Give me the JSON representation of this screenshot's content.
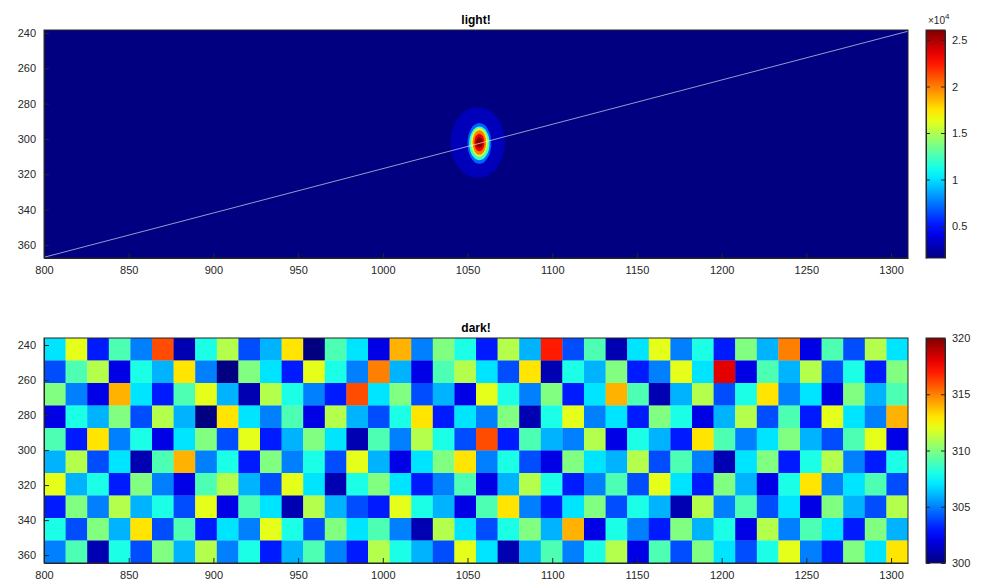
{
  "chart_data": [
    {
      "type": "heatmap",
      "title": "light!",
      "xlim": [
        800,
        1310
      ],
      "xticks": [
        800,
        850,
        900,
        950,
        1000,
        1050,
        1100,
        1150,
        1200,
        1250,
        1300
      ],
      "ylim": [
        238.3,
        367.4
      ],
      "yticks": [
        240,
        260,
        280,
        300,
        320,
        340,
        360
      ],
      "background": 1560,
      "spot": [
        [
          1040,
          1072,
          282,
          322,
          3000
        ],
        [
          1050,
          1064,
          291,
          314,
          7000
        ],
        [
          1051,
          1063,
          293,
          312,
          12000
        ],
        [
          1052,
          1062,
          294,
          310,
          16000
        ],
        [
          1053,
          1061,
          295,
          309,
          20000
        ],
        [
          1054,
          1060,
          297,
          307,
          23500
        ],
        [
          1055,
          1059,
          299,
          305,
          26000
        ]
      ],
      "line": {
        "x": [
          800,
          1310
        ],
        "y": [
          367,
          239
        ],
        "color": "#ffffff"
      },
      "colorbar": {
        "range": [
          1560,
          26075
        ],
        "ticks": [
          {
            "value": 5000,
            "label": "0.5"
          },
          {
            "value": 10000,
            "label": "1"
          },
          {
            "value": 15000,
            "label": "1.5"
          },
          {
            "value": 20000,
            "label": "2"
          },
          {
            "value": 25000,
            "label": "2.5"
          }
        ],
        "exponent": {
          "base": "×10",
          "power": "4"
        }
      }
    },
    {
      "type": "heatmap",
      "title": "dark!",
      "xlim": [
        800,
        1310
      ],
      "xticks": [
        800,
        850,
        900,
        950,
        1000,
        1050,
        1100,
        1150,
        1200,
        1250,
        1300
      ],
      "ylim": [
        236,
        364.5
      ],
      "yticks": [
        240,
        260,
        280,
        300,
        320,
        340,
        360
      ],
      "z": [
        [
          307,
          312,
          303,
          309,
          305,
          316,
          301,
          308,
          311,
          304,
          306,
          313,
          300,
          309,
          307,
          302,
          314,
          305,
          310,
          308,
          303,
          311,
          306,
          317,
          304,
          309,
          301,
          307,
          312,
          305,
          308,
          303,
          310,
          306,
          315,
          302,
          309,
          304,
          311,
          307
        ],
        [
          304,
          309,
          311,
          302,
          308,
          306,
          313,
          305,
          300,
          310,
          307,
          303,
          312,
          308,
          305,
          315,
          306,
          302,
          309,
          311,
          307,
          304,
          313,
          301,
          308,
          306,
          310,
          303,
          305,
          312,
          307,
          318,
          302,
          309,
          306,
          311,
          304,
          308,
          303,
          310
        ],
        [
          310,
          305,
          302,
          314,
          307,
          303,
          309,
          312,
          306,
          301,
          311,
          308,
          305,
          303,
          316,
          307,
          310,
          304,
          306,
          302,
          312,
          308,
          305,
          310,
          303,
          307,
          314,
          309,
          301,
          306,
          311,
          304,
          308,
          313,
          305,
          307,
          302,
          310,
          306,
          309
        ],
        [
          302,
          308,
          306,
          310,
          304,
          311,
          306,
          300,
          313,
          307,
          305,
          309,
          302,
          311,
          306,
          304,
          308,
          313,
          303,
          307,
          305,
          310,
          301,
          308,
          312,
          305,
          307,
          303,
          310,
          308,
          302,
          306,
          311,
          304,
          309,
          303,
          312,
          307,
          305,
          314
        ],
        [
          309,
          303,
          313,
          305,
          308,
          302,
          307,
          310,
          304,
          312,
          303,
          306,
          310,
          307,
          301,
          309,
          305,
          311,
          308,
          304,
          316,
          303,
          309,
          306,
          305,
          311,
          302,
          308,
          306,
          303,
          313,
          309,
          305,
          307,
          310,
          306,
          304,
          309,
          312,
          302
        ],
        [
          306,
          311,
          304,
          307,
          301,
          309,
          314,
          305,
          308,
          303,
          310,
          305,
          308,
          304,
          312,
          306,
          302,
          307,
          310,
          313,
          305,
          308,
          304,
          302,
          310,
          307,
          306,
          311,
          304,
          309,
          305,
          301,
          307,
          310,
          303,
          308,
          311,
          305,
          303,
          308
        ],
        [
          312,
          306,
          308,
          303,
          310,
          305,
          302,
          309,
          311,
          306,
          304,
          312,
          307,
          301,
          308,
          310,
          307,
          303,
          305,
          309,
          302,
          306,
          311,
          308,
          303,
          305,
          309,
          304,
          312,
          307,
          303,
          310,
          306,
          302,
          308,
          313,
          305,
          307,
          309,
          304
        ],
        [
          303,
          310,
          305,
          311,
          306,
          308,
          304,
          312,
          302,
          309,
          307,
          301,
          311,
          306,
          304,
          303,
          312,
          308,
          306,
          302,
          309,
          313,
          305,
          303,
          307,
          310,
          304,
          308,
          306,
          301,
          311,
          305,
          309,
          304,
          307,
          302,
          310,
          306,
          304,
          311
        ],
        [
          308,
          304,
          310,
          306,
          313,
          304,
          309,
          303,
          307,
          305,
          312,
          308,
          304,
          310,
          307,
          309,
          305,
          301,
          311,
          307,
          304,
          308,
          310,
          306,
          314,
          302,
          308,
          305,
          303,
          310,
          306,
          308,
          302,
          311,
          305,
          309,
          307,
          303,
          310,
          306
        ],
        [
          305,
          309,
          301,
          308,
          304,
          310,
          306,
          311,
          305,
          308,
          303,
          306,
          309,
          305,
          303,
          311,
          308,
          306,
          304,
          312,
          307,
          301,
          306,
          309,
          305,
          308,
          311,
          302,
          309,
          304,
          310,
          307,
          304,
          308,
          312,
          305,
          303,
          310,
          307,
          313
        ]
      ],
      "colorbar": {
        "range": [
          300,
          320
        ],
        "ticks": [
          300,
          305,
          310,
          315,
          320
        ]
      }
    }
  ]
}
